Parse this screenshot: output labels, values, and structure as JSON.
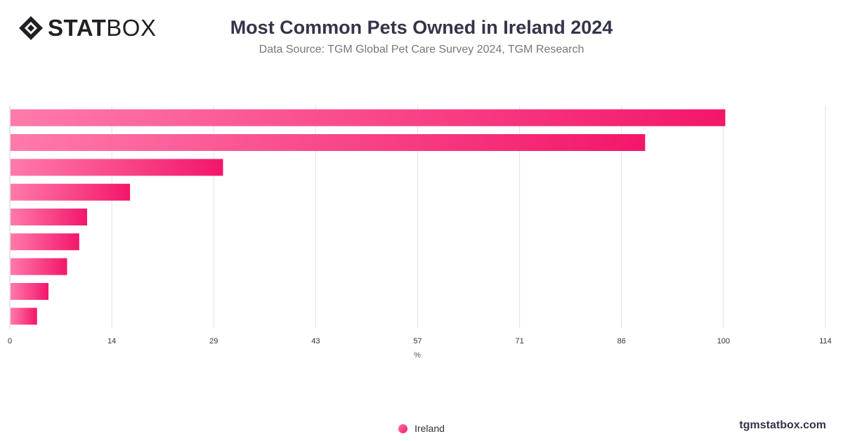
{
  "brand": {
    "logo_strong": "STAT",
    "logo_light": "BOX",
    "site": "tgmstatbox.com"
  },
  "colors": {
    "bar_start": "#ff7aab",
    "bar_end": "#f3166a",
    "grid": "#e2e2e2",
    "axis_text": "#333333"
  },
  "chart_data": {
    "type": "bar",
    "orientation": "horizontal",
    "title": "Most Common Pets Owned in Ireland 2024",
    "subtitle": "Data Source: TGM Global Pet Care Survey 2024, TGM Research",
    "xlabel": "%",
    "xlim": [
      0,
      114
    ],
    "xticks": [
      "0",
      "14",
      "29",
      "43",
      "57",
      "71",
      "86",
      "100",
      "114"
    ],
    "categories": [
      "",
      "",
      "",
      "",
      "",
      "",
      "",
      "",
      ""
    ],
    "series": [
      {
        "name": "Ireland",
        "values": [
          100,
          88.8,
          29.8,
          16.8,
          10.8,
          9.7,
          8.0,
          5.4,
          3.8
        ]
      }
    ],
    "grid": true,
    "legend": "bottom-center"
  }
}
